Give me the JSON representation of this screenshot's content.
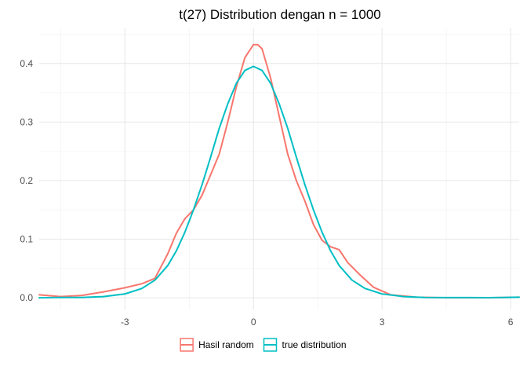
{
  "chart_data": {
    "type": "line",
    "title": "t(27) Distribution dengan n = 1000",
    "xlabel": "",
    "ylabel": "",
    "xlim": [
      -5.0,
      6.2
    ],
    "ylim": [
      -0.02,
      0.46
    ],
    "x_ticks": [
      -3,
      0,
      3,
      6
    ],
    "x_tick_labels": [
      "-3",
      "0",
      "3",
      "6"
    ],
    "y_ticks": [
      0.0,
      0.1,
      0.2,
      0.3,
      0.4
    ],
    "y_tick_labels": [
      "0.0",
      "0.1",
      "0.2",
      "0.3",
      "0.4"
    ],
    "grid": true,
    "legend_position": "bottom",
    "series": [
      {
        "name": "Hasil random",
        "color": "#F8766D",
        "x": [
          -5.0,
          -4.5,
          -4.0,
          -3.5,
          -3.0,
          -2.6,
          -2.3,
          -2.0,
          -1.8,
          -1.6,
          -1.4,
          -1.2,
          -1.0,
          -0.8,
          -0.6,
          -0.4,
          -0.2,
          0.0,
          0.1,
          0.2,
          0.4,
          0.6,
          0.8,
          1.0,
          1.2,
          1.4,
          1.6,
          1.8,
          2.0,
          2.2,
          2.5,
          2.8,
          3.2,
          3.8,
          4.5,
          5.5,
          6.2
        ],
        "values": [
          0.005,
          0.002,
          0.004,
          0.01,
          0.017,
          0.024,
          0.033,
          0.075,
          0.11,
          0.135,
          0.15,
          0.175,
          0.21,
          0.245,
          0.3,
          0.36,
          0.41,
          0.432,
          0.432,
          0.425,
          0.375,
          0.31,
          0.245,
          0.2,
          0.165,
          0.125,
          0.098,
          0.087,
          0.082,
          0.06,
          0.038,
          0.018,
          0.005,
          0.001,
          0.0,
          0.0,
          0.001
        ]
      },
      {
        "name": "true distribution",
        "color": "#00BFC4",
        "x": [
          -5.0,
          -4.5,
          -4.0,
          -3.5,
          -3.0,
          -2.6,
          -2.3,
          -2.0,
          -1.8,
          -1.6,
          -1.4,
          -1.2,
          -1.0,
          -0.8,
          -0.6,
          -0.4,
          -0.2,
          0.0,
          0.2,
          0.4,
          0.6,
          0.8,
          1.0,
          1.2,
          1.4,
          1.6,
          1.8,
          2.0,
          2.3,
          2.6,
          3.0,
          3.5,
          4.0,
          4.5,
          5.0,
          5.5,
          6.2
        ],
        "values": [
          0.0,
          0.0005,
          0.0005,
          0.002,
          0.0065,
          0.016,
          0.03,
          0.055,
          0.08,
          0.112,
          0.15,
          0.193,
          0.24,
          0.289,
          0.331,
          0.366,
          0.388,
          0.395,
          0.388,
          0.366,
          0.331,
          0.289,
          0.24,
          0.193,
          0.15,
          0.112,
          0.08,
          0.055,
          0.03,
          0.016,
          0.0065,
          0.002,
          0.0005,
          0.0003,
          0.0002,
          0.0001,
          0.001
        ]
      }
    ]
  }
}
